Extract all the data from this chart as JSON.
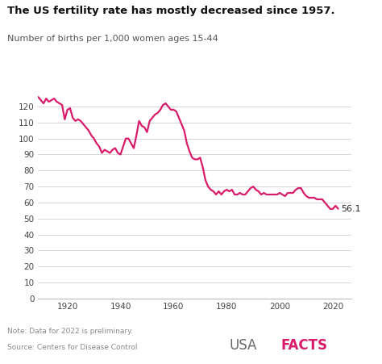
{
  "title": "The US fertility rate has mostly decreased since 1957.",
  "subtitle": "Number of births per 1,000 women ages 15-44",
  "line_color": "#D81B6A",
  "background_color": "#ffffff",
  "note": "Note: Data for 2022 is preliminary.",
  "source": "Source: Centers for Disease Control",
  "end_label": "56.1",
  "ylim": [
    0,
    132
  ],
  "yticks": [
    0,
    10,
    20,
    30,
    40,
    50,
    60,
    70,
    80,
    90,
    100,
    110,
    120
  ],
  "xticks": [
    1920,
    1940,
    1960,
    1980,
    2000,
    2020
  ],
  "xlim": [
    1909,
    2027
  ],
  "data": {
    "years": [
      1909,
      1910,
      1911,
      1912,
      1913,
      1914,
      1915,
      1916,
      1917,
      1918,
      1919,
      1920,
      1921,
      1922,
      1923,
      1924,
      1925,
      1926,
      1927,
      1928,
      1929,
      1930,
      1931,
      1932,
      1933,
      1934,
      1935,
      1936,
      1937,
      1938,
      1939,
      1940,
      1941,
      1942,
      1943,
      1944,
      1945,
      1946,
      1947,
      1948,
      1949,
      1950,
      1951,
      1952,
      1953,
      1954,
      1955,
      1956,
      1957,
      1958,
      1959,
      1960,
      1961,
      1962,
      1963,
      1964,
      1965,
      1966,
      1967,
      1968,
      1969,
      1970,
      1971,
      1972,
      1973,
      1974,
      1975,
      1976,
      1977,
      1978,
      1979,
      1980,
      1981,
      1982,
      1983,
      1984,
      1985,
      1986,
      1987,
      1988,
      1989,
      1990,
      1991,
      1992,
      1993,
      1994,
      1995,
      1996,
      1997,
      1998,
      1999,
      2000,
      2001,
      2002,
      2003,
      2004,
      2005,
      2006,
      2007,
      2008,
      2009,
      2010,
      2011,
      2012,
      2013,
      2014,
      2015,
      2016,
      2017,
      2018,
      2019,
      2020,
      2021,
      2022
    ],
    "values": [
      126,
      124,
      122,
      125,
      123,
      124,
      125,
      123,
      122,
      121,
      112,
      118,
      119,
      113,
      111,
      112,
      111,
      109,
      107,
      105,
      102,
      100,
      97,
      95,
      91,
      93,
      92,
      91,
      93,
      94,
      91,
      90,
      95,
      100,
      100,
      97,
      94,
      102,
      111,
      108,
      107,
      104,
      111,
      113,
      115,
      116,
      118,
      121,
      122,
      120,
      118,
      118,
      117,
      113,
      109,
      105,
      97,
      92,
      88,
      87,
      87,
      88,
      82,
      74,
      70,
      68,
      67,
      65,
      67,
      65,
      67,
      68,
      67,
      68,
      65,
      65,
      66,
      65,
      65,
      67,
      69,
      70,
      68,
      67,
      65,
      66,
      65,
      65,
      65,
      65,
      65,
      66,
      65,
      64,
      66,
      66,
      66,
      68,
      69,
      69,
      66,
      64,
      63,
      63,
      63,
      62,
      62,
      62,
      60,
      58,
      56,
      56,
      58,
      56.1
    ]
  }
}
